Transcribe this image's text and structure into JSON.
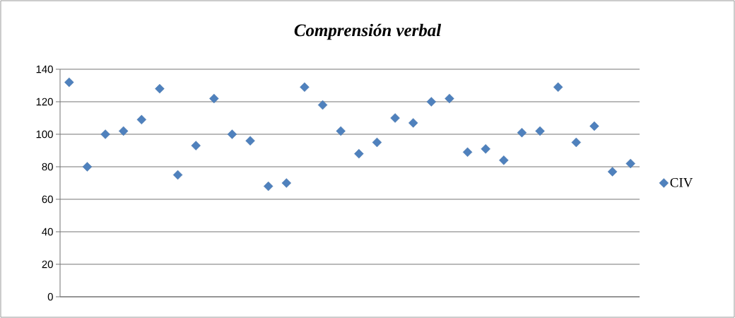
{
  "chart_data": {
    "type": "scatter",
    "title": "Comprensión verbal",
    "categories": [
      null,
      null,
      null,
      null,
      null,
      null,
      null,
      null,
      null,
      null,
      null,
      null,
      null,
      null,
      null,
      null,
      null,
      null,
      null,
      null,
      null,
      null,
      null,
      null,
      null,
      null,
      null,
      null,
      null,
      null,
      null,
      null
    ],
    "series": [
      {
        "name": "CIV",
        "color": "#4f81bd",
        "values": [
          132,
          80,
          100,
          102,
          109,
          128,
          75,
          93,
          122,
          100,
          96,
          68,
          70,
          129,
          118,
          102,
          88,
          95,
          110,
          107,
          120,
          122,
          89,
          91,
          84,
          101,
          102,
          129,
          95,
          105,
          77,
          82
        ]
      }
    ],
    "ylim": [
      0,
      140
    ],
    "yticks": [
      0,
      20,
      40,
      60,
      80,
      100,
      120,
      140
    ],
    "grid": "y",
    "legend": "right",
    "marker": "diamond",
    "tick_labels": "y"
  }
}
